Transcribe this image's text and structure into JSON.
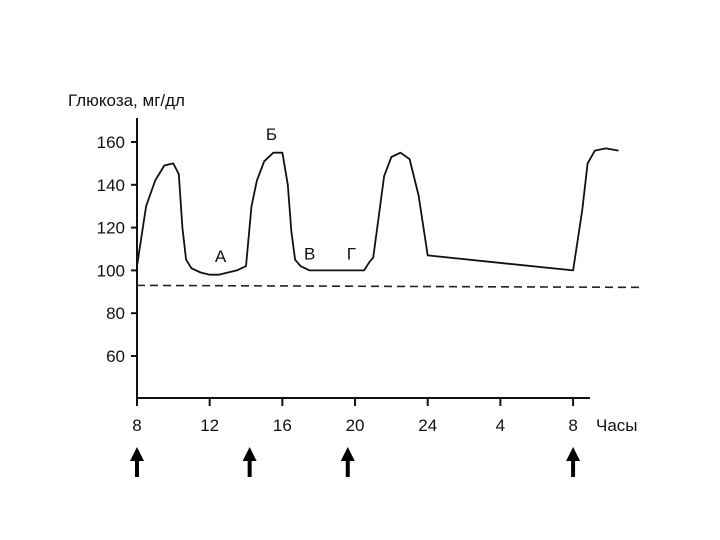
{
  "chart_data": {
    "type": "line",
    "ylabel": "Глюкоза, мг/дл",
    "xlabel": "Часы",
    "ylim": [
      40,
      170
    ],
    "yticks": [
      60,
      80,
      100,
      120,
      140,
      160
    ],
    "xticks": [
      {
        "t": 0,
        "label": "8"
      },
      {
        "t": 4,
        "label": "12"
      },
      {
        "t": 8,
        "label": "16"
      },
      {
        "t": 12,
        "label": "20"
      },
      {
        "t": 16,
        "label": "24"
      },
      {
        "t": 20,
        "label": "4"
      },
      {
        "t": 24,
        "label": "8"
      }
    ],
    "series": [
      {
        "x": [
          0,
          0.5,
          1,
          1.5,
          2,
          2.3,
          2.5,
          2.7,
          3,
          3.5,
          4,
          4.5,
          5,
          5.5,
          6,
          6.3,
          6.6,
          7,
          7.5,
          8,
          8.3,
          8.5,
          8.7,
          9,
          9.5,
          10,
          10.5,
          11,
          11.5,
          12,
          12.5,
          12.8,
          13,
          13.3,
          13.6,
          14,
          14.5,
          15,
          15.5,
          16,
          24,
          24.5,
          24.8,
          25.2,
          25.8,
          26.5
        ],
        "y": [
          102,
          130,
          142,
          149,
          150,
          145,
          120,
          105,
          101,
          99,
          98,
          98,
          99,
          100,
          102,
          130,
          142,
          151,
          155,
          155,
          140,
          118,
          105,
          102,
          100,
          100,
          100,
          100,
          100,
          100,
          100,
          104,
          106,
          125,
          144,
          153,
          155,
          152,
          135,
          107,
          100,
          128,
          150,
          156,
          157,
          156
        ]
      }
    ],
    "reference_line": {
      "y": 93,
      "style": "dashed"
    },
    "point_labels": [
      {
        "text": "А",
        "t": 4.6,
        "y": 104
      },
      {
        "text": "Б",
        "t": 7.4,
        "y": 161
      },
      {
        "text": "В",
        "t": 9.5,
        "y": 105
      },
      {
        "text": "Г",
        "t": 11.8,
        "y": 105
      }
    ],
    "arrows_at": [
      0,
      6.2,
      11.6,
      24
    ]
  }
}
